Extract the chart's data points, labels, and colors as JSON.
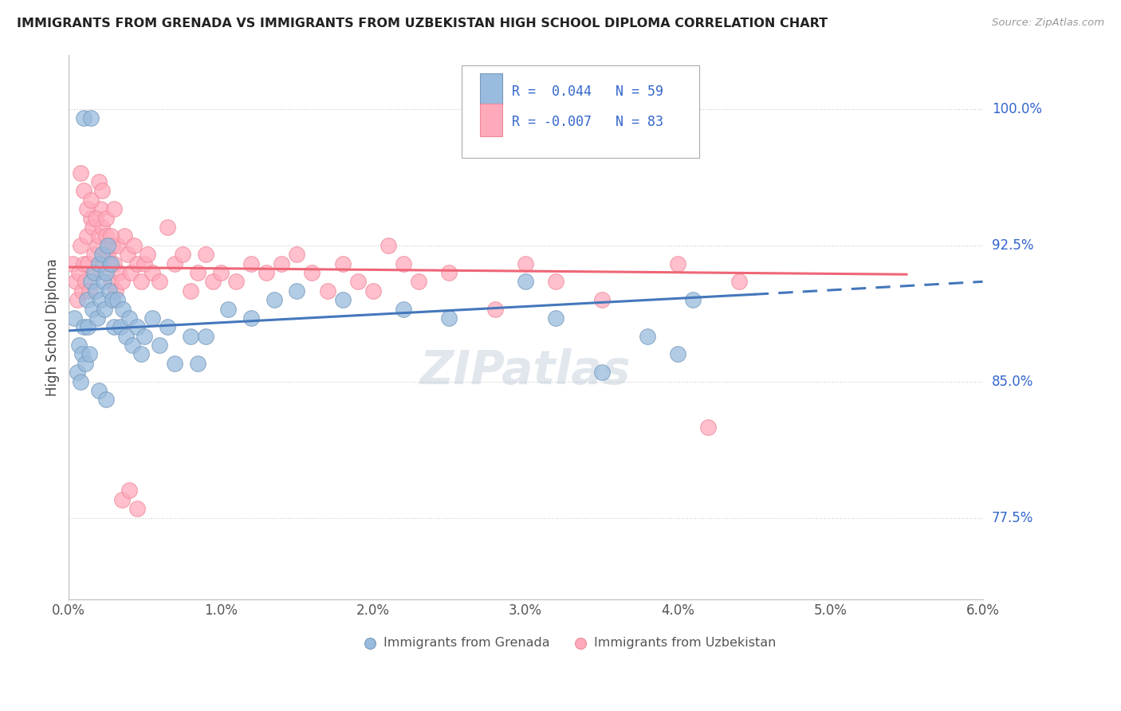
{
  "title": "IMMIGRANTS FROM GRENADA VS IMMIGRANTS FROM UZBEKISTAN HIGH SCHOOL DIPLOMA CORRELATION CHART",
  "source": "Source: ZipAtlas.com",
  "ylabel": "High School Diploma",
  "xlabel_ticks": [
    "0.0%",
    "1.0%",
    "2.0%",
    "3.0%",
    "4.0%",
    "5.0%",
    "6.0%"
  ],
  "xlabel_vals": [
    0.0,
    1.0,
    2.0,
    3.0,
    4.0,
    5.0,
    6.0
  ],
  "ytick_labels": [
    "77.5%",
    "85.0%",
    "92.5%",
    "100.0%"
  ],
  "ytick_vals": [
    77.5,
    85.0,
    92.5,
    100.0
  ],
  "xlim": [
    0.0,
    6.0
  ],
  "ylim": [
    73.0,
    103.0
  ],
  "blue_color": "#99BBDD",
  "pink_color": "#FFAABB",
  "blue_edge": "#7799BB",
  "pink_edge": "#EE8899",
  "trend_blue": "#4477BB",
  "trend_pink": "#EE6677",
  "legend_blue_r": "0.044",
  "legend_blue_n": "59",
  "legend_pink_r": "-0.007",
  "legend_pink_n": "83",
  "legend_label_blue": "Immigrants from Grenada",
  "legend_label_pink": "Immigrants from Uzbekistan",
  "background_color": "#FFFFFF",
  "grid_color": "#CCCCCC",
  "blue_x": [
    0.04,
    0.06,
    0.07,
    0.08,
    0.09,
    0.1,
    0.11,
    0.12,
    0.13,
    0.14,
    0.15,
    0.16,
    0.17,
    0.18,
    0.19,
    0.2,
    0.21,
    0.22,
    0.23,
    0.24,
    0.25,
    0.26,
    0.27,
    0.28,
    0.29,
    0.3,
    0.32,
    0.34,
    0.36,
    0.38,
    0.4,
    0.42,
    0.45,
    0.48,
    0.5,
    0.55,
    0.6,
    0.65,
    0.7,
    0.8,
    0.85,
    0.9,
    1.05,
    1.2,
    1.35,
    1.5,
    1.8,
    2.2,
    2.5,
    3.0,
    3.2,
    3.5,
    3.8,
    4.0,
    4.1,
    0.1,
    0.15,
    0.2,
    0.25
  ],
  "blue_y": [
    88.5,
    85.5,
    87.0,
    85.0,
    86.5,
    88.0,
    86.0,
    89.5,
    88.0,
    86.5,
    90.5,
    89.0,
    91.0,
    90.0,
    88.5,
    91.5,
    89.5,
    92.0,
    90.5,
    89.0,
    91.0,
    92.5,
    90.0,
    91.5,
    89.5,
    88.0,
    89.5,
    88.0,
    89.0,
    87.5,
    88.5,
    87.0,
    88.0,
    86.5,
    87.5,
    88.5,
    87.0,
    88.0,
    86.0,
    87.5,
    86.0,
    87.5,
    89.0,
    88.5,
    89.5,
    90.0,
    89.5,
    89.0,
    88.5,
    90.5,
    88.5,
    85.5,
    87.5,
    86.5,
    89.5,
    99.5,
    99.5,
    84.5,
    84.0
  ],
  "pink_x": [
    0.03,
    0.05,
    0.06,
    0.07,
    0.08,
    0.09,
    0.1,
    0.11,
    0.12,
    0.13,
    0.14,
    0.15,
    0.16,
    0.17,
    0.18,
    0.19,
    0.2,
    0.21,
    0.22,
    0.23,
    0.24,
    0.25,
    0.26,
    0.27,
    0.28,
    0.29,
    0.3,
    0.31,
    0.32,
    0.33,
    0.35,
    0.37,
    0.39,
    0.41,
    0.43,
    0.45,
    0.48,
    0.5,
    0.52,
    0.55,
    0.6,
    0.65,
    0.7,
    0.75,
    0.8,
    0.85,
    0.9,
    0.95,
    1.0,
    1.1,
    1.2,
    1.3,
    1.4,
    1.5,
    1.6,
    1.7,
    1.8,
    1.9,
    2.0,
    2.1,
    2.2,
    2.3,
    2.5,
    2.8,
    3.0,
    3.2,
    3.5,
    4.0,
    4.2,
    4.4,
    0.08,
    0.1,
    0.12,
    0.15,
    0.18,
    0.2,
    0.22,
    0.25,
    0.28,
    0.3,
    0.35,
    0.4,
    0.45
  ],
  "pink_y": [
    91.5,
    90.5,
    89.5,
    91.0,
    92.5,
    90.0,
    91.5,
    90.5,
    93.0,
    91.5,
    90.0,
    94.0,
    93.5,
    92.0,
    91.0,
    92.5,
    93.0,
    94.5,
    93.5,
    91.5,
    92.0,
    93.0,
    92.0,
    91.5,
    90.5,
    92.5,
    91.5,
    90.0,
    92.5,
    91.0,
    90.5,
    93.0,
    92.0,
    91.0,
    92.5,
    91.5,
    90.5,
    91.5,
    92.0,
    91.0,
    90.5,
    93.5,
    91.5,
    92.0,
    90.0,
    91.0,
    92.0,
    90.5,
    91.0,
    90.5,
    91.5,
    91.0,
    91.5,
    92.0,
    91.0,
    90.0,
    91.5,
    90.5,
    90.0,
    92.5,
    91.5,
    90.5,
    91.0,
    89.0,
    91.5,
    90.5,
    89.5,
    91.5,
    82.5,
    90.5,
    96.5,
    95.5,
    94.5,
    95.0,
    94.0,
    96.0,
    95.5,
    94.0,
    93.0,
    94.5,
    78.5,
    79.0,
    78.0
  ],
  "blue_trend_x0": 0.0,
  "blue_trend_x1": 4.5,
  "blue_trend_y0": 87.8,
  "blue_trend_y1": 89.8,
  "blue_dash_x0": 4.5,
  "blue_dash_x1": 6.0,
  "blue_dash_y0": 89.8,
  "blue_dash_y1": 90.5,
  "pink_trend_x0": 0.0,
  "pink_trend_x1": 5.5,
  "pink_trend_y0": 91.3,
  "pink_trend_y1": 90.9
}
